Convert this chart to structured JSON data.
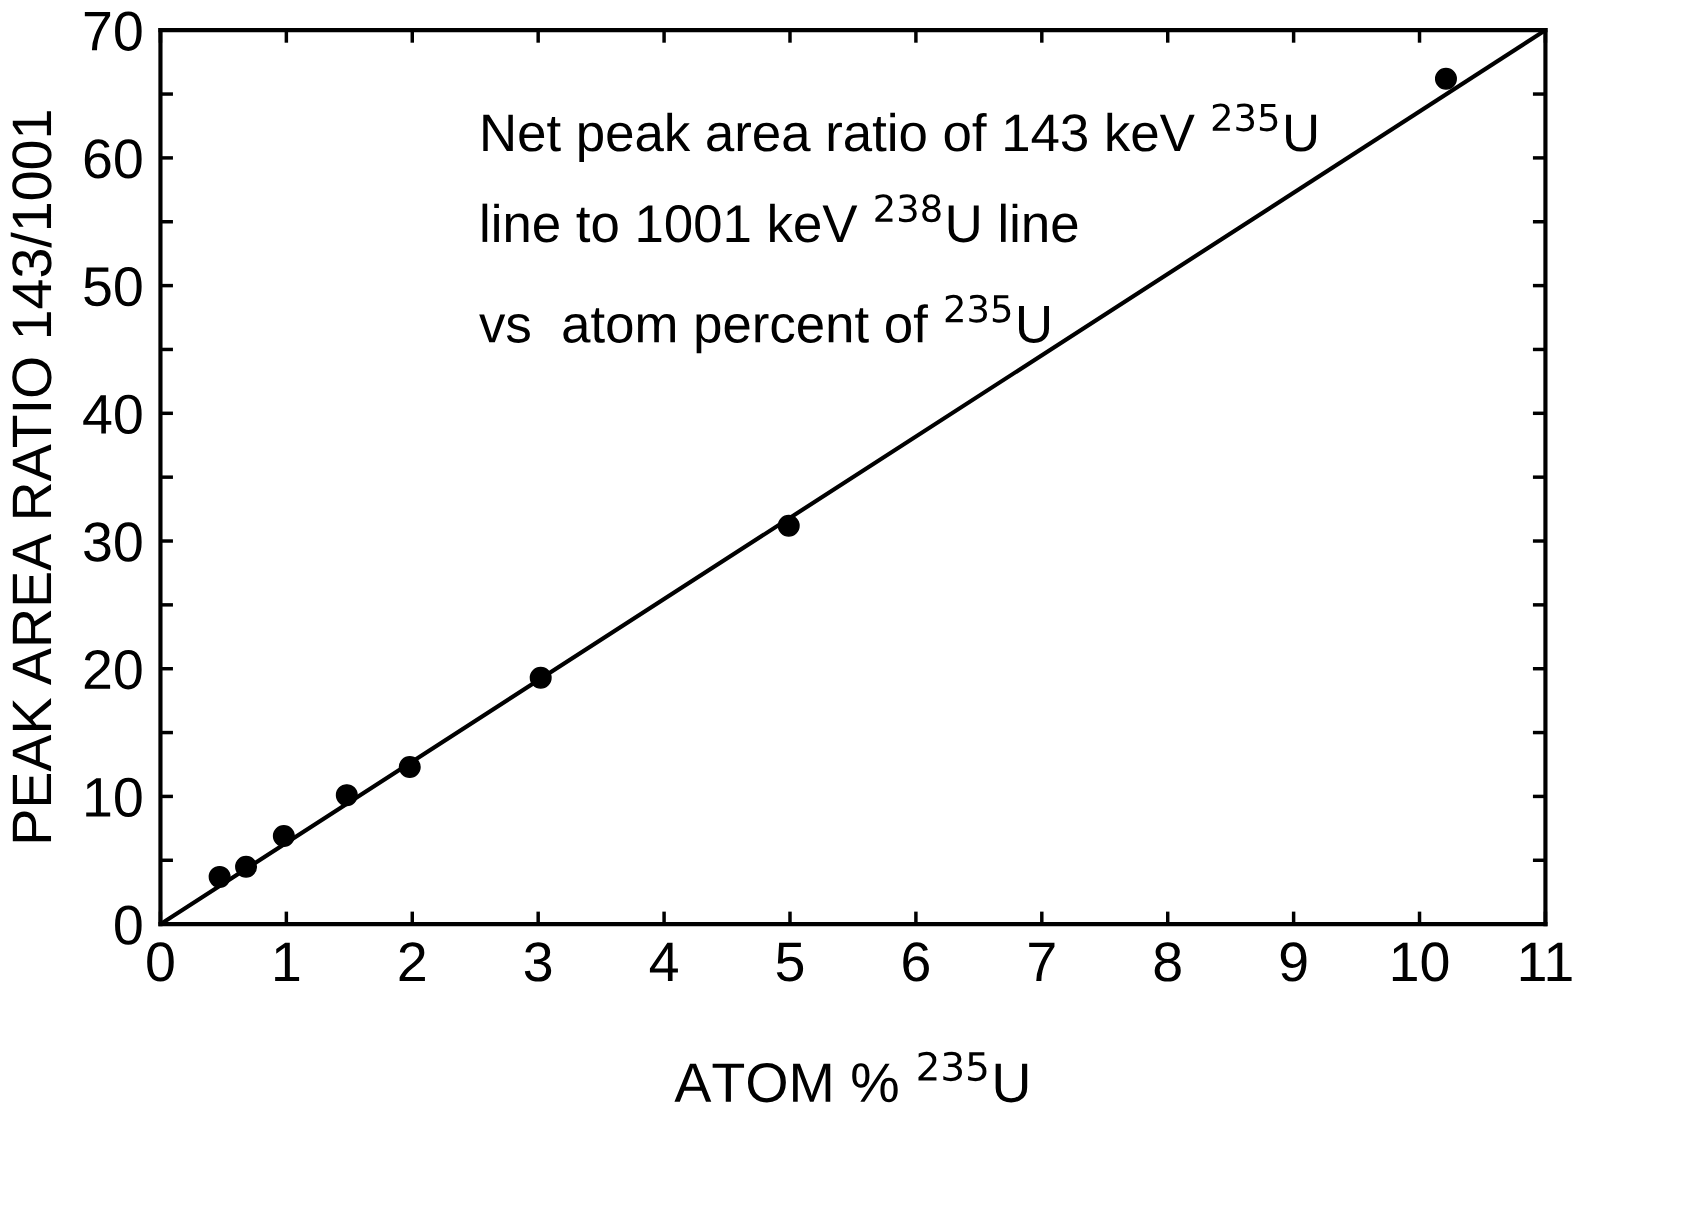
{
  "chart_data": {
    "type": "scatter",
    "xlabel": "ATOM % $^{235}$U",
    "ylabel": "PEAK AREA RATIO 143/1001",
    "annotations": [
      "Net peak area ratio of 143 keV $^{235}$U",
      "line to 1001 keV $^{238}$U line",
      "vs  atom percent of $^{235}$U"
    ],
    "series": [
      {
        "type": "scatter",
        "color": "#000000",
        "marker": "circle",
        "x": [
          0.47,
          0.68,
          0.98,
          1.48,
          1.98,
          3.02,
          4.99,
          10.21
        ],
        "values": [
          3.7,
          4.5,
          6.9,
          10.1,
          12.3,
          19.3,
          31.2,
          66.2
        ]
      },
      {
        "type": "line",
        "color": "#000000",
        "line_style": "solid",
        "x": [
          0,
          11
        ],
        "values": [
          0,
          70
        ]
      }
    ],
    "xlim": [
      0,
      11
    ],
    "xticks": [
      0,
      1,
      2,
      3,
      4,
      5,
      6,
      7,
      8,
      9,
      10,
      11
    ],
    "ylim": [
      0,
      70
    ],
    "yticks": [
      0,
      {
        "value": 5,
        "label": null
      },
      10,
      {
        "value": 15,
        "label": null
      },
      20,
      {
        "value": 25,
        "label": null
      },
      30,
      {
        "value": 35,
        "label": null
      },
      40,
      {
        "value": 45,
        "label": null
      },
      50,
      {
        "value": 55,
        "label": null
      },
      60,
      {
        "value": 65,
        "label": null
      },
      70
    ],
    "grid": false,
    "legend": false
  }
}
